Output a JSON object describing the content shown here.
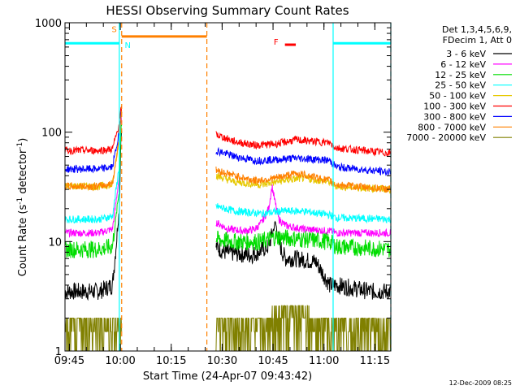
{
  "chart_data": {
    "type": "line",
    "title": "HESSI Observing Summary Count Rates",
    "xlabel": "Start Time (24-Apr-07 09:43:42)",
    "ylabel": "Count Rate (s",
    "ylabel_sup1": "-1",
    "ylabel_mid": " detector",
    "ylabel_sup2": "-1",
    "ylabel_end": ")",
    "x_unit": "minutes after 09:43:42",
    "xlim": [
      0,
      96
    ],
    "ylim": [
      1,
      1000
    ],
    "y_scale": "log",
    "x_ticks": [
      {
        "label": "09:45",
        "value": 1.3
      },
      {
        "label": "10:00",
        "value": 16.3
      },
      {
        "label": "10:15",
        "value": 31.3
      },
      {
        "label": "10:30",
        "value": 46.3
      },
      {
        "label": "10:45",
        "value": 61.3
      },
      {
        "label": "11:00",
        "value": 76.3
      },
      {
        "label": "11:15",
        "value": 91.3
      }
    ],
    "y_ticks": [
      {
        "label": "1",
        "value": 1
      },
      {
        "label": "10",
        "value": 10
      },
      {
        "label": "100",
        "value": 100
      },
      {
        "label": "1000",
        "value": 1000
      }
    ],
    "legend_header": [
      "Det 1,3,4,5,6,9,",
      "FDecim 1, Att 0"
    ],
    "legend_position": "right",
    "timestamp": "12-Dec-2009 08:25",
    "series": [
      {
        "name": "3 - 6 keV",
        "color": "#000000",
        "x": [
          0,
          10,
          14,
          16,
          16.5,
          44.5,
          47,
          55,
          60,
          62,
          63,
          64,
          65,
          68,
          74,
          78,
          80,
          90,
          96
        ],
        "y": [
          3.5,
          3.5,
          4,
          20,
          100,
          9,
          8,
          7.5,
          9,
          15,
          10,
          8,
          7,
          7,
          6.5,
          4,
          4,
          3.5,
          3.5
        ]
      },
      {
        "name": "6 - 12 keV",
        "color": "#ff00ff",
        "x": [
          0,
          10,
          14,
          16,
          16.5,
          44.5,
          48,
          53,
          56,
          58,
          60,
          61,
          62,
          63,
          65,
          70,
          78,
          80,
          96
        ],
        "y": [
          12,
          12,
          13,
          40,
          130,
          15,
          13,
          12.5,
          13,
          15,
          20,
          32,
          22,
          16,
          14,
          13,
          12.5,
          12,
          12
        ]
      },
      {
        "name": "12 - 25 keV",
        "color": "#00dd00",
        "x": [
          0,
          10,
          14,
          16,
          16.5,
          44.5,
          50,
          58,
          62,
          70,
          78,
          80,
          96
        ],
        "y": [
          8.5,
          8.5,
          9,
          30,
          120,
          10.5,
          10,
          10,
          11,
          10.5,
          10,
          9,
          8.5
        ]
      },
      {
        "name": "25 - 50 keV",
        "color": "#00ffff",
        "x": [
          0,
          10,
          14,
          16,
          16.5,
          44.5,
          50,
          58,
          64,
          70,
          78,
          80,
          96
        ],
        "y": [
          16,
          16,
          17,
          50,
          150,
          21,
          19,
          18,
          19,
          19,
          17.5,
          16.5,
          16
        ]
      },
      {
        "name": "50 - 100 keV",
        "color": "#e6c800",
        "x": [
          0,
          10,
          14,
          16,
          16.5,
          44.5,
          50,
          58,
          64,
          70,
          78,
          80,
          96
        ],
        "y": [
          32,
          32,
          33,
          90,
          150,
          40,
          35,
          33,
          36,
          38,
          35,
          32,
          30
        ]
      },
      {
        "name": "100 - 300 keV",
        "color": "#ff0000",
        "x": [
          0,
          10,
          14,
          16,
          16.5,
          44.5,
          50,
          56,
          62,
          68,
          72,
          78,
          80,
          96
        ],
        "y": [
          68,
          68,
          70,
          120,
          160,
          95,
          82,
          76,
          78,
          85,
          83,
          80,
          72,
          64
        ]
      },
      {
        "name": "300 - 800 keV",
        "color": "#0000ff",
        "x": [
          0,
          10,
          14,
          16,
          16.5,
          44.5,
          50,
          56,
          62,
          68,
          72,
          78,
          80,
          96
        ],
        "y": [
          46,
          46,
          48,
          100,
          150,
          68,
          60,
          55,
          56,
          58,
          57,
          55,
          48,
          43
        ]
      },
      {
        "name": "800 - 7000 keV",
        "color": "#ff8000",
        "x": [
          0,
          10,
          14,
          16,
          16.5,
          44.5,
          50,
          56,
          62,
          68,
          72,
          78,
          80,
          96
        ],
        "y": [
          32,
          32,
          34,
          90,
          150,
          45,
          40,
          36,
          38,
          42,
          40,
          36,
          33,
          30
        ]
      },
      {
        "name": "7000 - 20000 keV",
        "color": "#808000",
        "x": [
          0,
          96
        ],
        "y": [
          1.5,
          1.5
        ]
      }
    ],
    "markers": {
      "attenuator_lines": [
        {
          "x": 16.7,
          "color": "#ff8000",
          "style": "dashed"
        },
        {
          "x": 41.8,
          "color": "#ff8000",
          "style": "dashed"
        },
        {
          "x": 16.0,
          "color": "#00ffff",
          "style": "solid"
        },
        {
          "x": 79.0,
          "color": "#00ffff",
          "style": "solid"
        },
        {
          "x": 96.0,
          "color": "#00ffff",
          "style": "dashed"
        }
      ],
      "cyan_bars": [
        {
          "x0": 0,
          "x1": 16.0,
          "y": 650
        },
        {
          "x0": 79.0,
          "x1": 96,
          "y": 650
        }
      ],
      "orange_bar": {
        "x0": 16.7,
        "x1": 41.8,
        "y": 750
      },
      "flare_bar": {
        "x0": 64.8,
        "x1": 68.0,
        "y": 630
      },
      "labels": [
        {
          "text": "S",
          "x": 14.5,
          "y": 820,
          "color": "#ff8000"
        },
        {
          "text": "N",
          "x": 18.5,
          "y": 590,
          "color": "#00ffff"
        },
        {
          "text": "F",
          "x": 62.2,
          "y": 630,
          "color": "#ff0000"
        }
      ]
    }
  }
}
